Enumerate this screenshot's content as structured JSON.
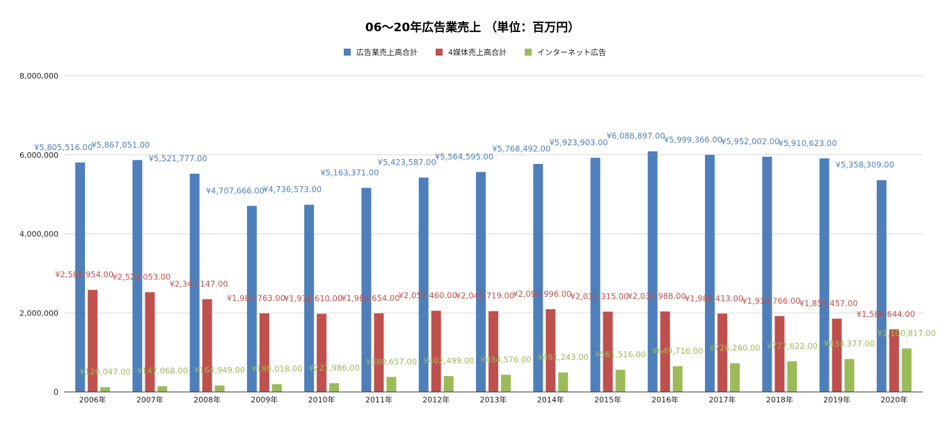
{
  "chart_data": {
    "type": "bar",
    "title": "06〜20年広告業売上 （単位：百万円）",
    "categories": [
      "2006年",
      "2007年",
      "2008年",
      "2009年",
      "2010年",
      "2011年",
      "2012年",
      "2013年",
      "2014年",
      "2015年",
      "2016年",
      "2017年",
      "2018年",
      "2019年",
      "2020年"
    ],
    "series": [
      {
        "name": "広告業売上高合計",
        "color": "#4e7fbb",
        "values": [
          5805516,
          5867051,
          5521777,
          4707666,
          4736573,
          5163371,
          5423587,
          5564595,
          5768492,
          5923903,
          6088897,
          5999366,
          5952002,
          5910623,
          5358309
        ],
        "labels": [
          "¥5,805,516.00",
          "¥5,867,051.00",
          "¥5,521,777.00",
          "¥4,707,666.00",
          "¥4,736,573.00",
          "¥5,163,371.00",
          "¥5,423,587.00",
          "¥5,564,595.00",
          "¥5,768,492.00",
          "¥5,923,903.00",
          "¥6,088,897.00",
          "¥5,999,366.00",
          "¥5,952,002.00",
          "¥5,910,623.00",
          "¥5,358,309.00"
        ]
      },
      {
        "name": "4媒体売上高合計",
        "color": "#c0504d",
        "values": [
          2581954,
          2525053,
          2347147,
          1987763,
          1978610,
          1988654,
          2053460,
          2045719,
          2094996,
          2031315,
          2035988,
          1982413,
          1919766,
          1853457,
          1586644
        ],
        "labels": [
          "¥2,581,954.00",
          "¥2,525,053.00",
          "¥2,347,147.00",
          "¥1,987,763.00",
          "¥1,978,610.00",
          "¥1,988,654.00",
          "¥2,053,460.00",
          "¥2,045,719.00",
          "¥2,094,996.00",
          "¥2,031,315.00",
          "¥2,035,988.00",
          "¥1,982,413.00",
          "¥1,919,766.00",
          "¥1,853,457.00",
          "¥1,586,644.00"
        ]
      },
      {
        "name": "インターネット広告",
        "color": "#9bbb59",
        "values": [
          120047,
          147068,
          164949,
          198018,
          221986,
          380657,
          402499,
          434576,
          491243,
          561516,
          649716,
          726260,
          777622,
          834377,
          1100817
        ],
        "labels": [
          "¥120,047.00",
          "¥147,068.00",
          "¥164,949.00",
          "¥198,018.00",
          "¥221,986.00",
          "¥380,657.00",
          "¥402,499.00",
          "¥434,576.00",
          "¥491,243.00",
          "¥561,516.00",
          "¥649,716.00",
          "¥726,260.00",
          "¥777,622.00",
          "¥834,377.00",
          "¥1,100,817.00"
        ]
      }
    ],
    "ylim": [
      0,
      8000000
    ],
    "yticks": [
      0,
      2000000,
      4000000,
      6000000,
      8000000
    ],
    "ytick_labels": [
      "0",
      "2,000,000",
      "4,000,000",
      "6,000,000",
      "8,000,000"
    ],
    "grid": true,
    "legend_position": "top-center"
  }
}
